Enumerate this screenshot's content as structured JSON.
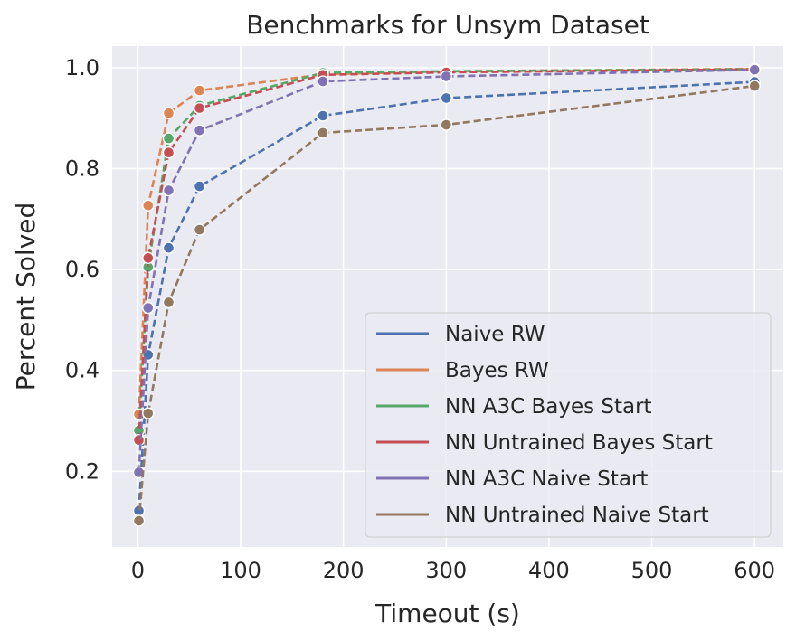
{
  "chart_data": {
    "type": "line",
    "title": "Benchmarks for Unsym Dataset",
    "xlabel": "Timeout (s)",
    "ylabel": "Percent Solved",
    "x": [
      1,
      10,
      30,
      60,
      180,
      300,
      600
    ],
    "xlim": [
      -25,
      628
    ],
    "ylim": [
      0.05,
      1.043
    ],
    "xticks": [
      0,
      100,
      200,
      300,
      400,
      500,
      600
    ],
    "xtick_labels": [
      "0",
      "100",
      "200",
      "300",
      "400",
      "500",
      "600"
    ],
    "yticks": [
      0.2,
      0.4,
      0.6,
      0.8,
      1.0
    ],
    "ytick_labels": [
      "0.2",
      "0.4",
      "0.6",
      "0.8",
      "1.0"
    ],
    "grid": true,
    "background": "#eaeaf2",
    "legend_position": "lower-right",
    "line_style": "dashed",
    "markers": "circle",
    "series": [
      {
        "name": "Naive RW",
        "color": "#4c72b0",
        "values": [
          0.122,
          0.431,
          0.643,
          0.765,
          0.905,
          0.94,
          0.972
        ]
      },
      {
        "name": "Bayes RW",
        "color": "#dd8452",
        "values": [
          0.313,
          0.727,
          0.91,
          0.955,
          0.987,
          0.993,
          0.998
        ]
      },
      {
        "name": "NN A3C Bayes Start",
        "color": "#55a868",
        "values": [
          0.281,
          0.605,
          0.86,
          0.925,
          0.99,
          0.993,
          0.997
        ]
      },
      {
        "name": "NN Untrained Bayes Start",
        "color": "#c44e52",
        "values": [
          0.262,
          0.623,
          0.832,
          0.92,
          0.986,
          0.991,
          0.997
        ]
      },
      {
        "name": "NN A3C Naive Start",
        "color": "#8172b3",
        "values": [
          0.198,
          0.524,
          0.757,
          0.876,
          0.973,
          0.983,
          0.996
        ]
      },
      {
        "name": "NN Untrained Naive Start",
        "color": "#937860",
        "values": [
          0.102,
          0.315,
          0.535,
          0.679,
          0.871,
          0.887,
          0.964
        ]
      }
    ]
  }
}
